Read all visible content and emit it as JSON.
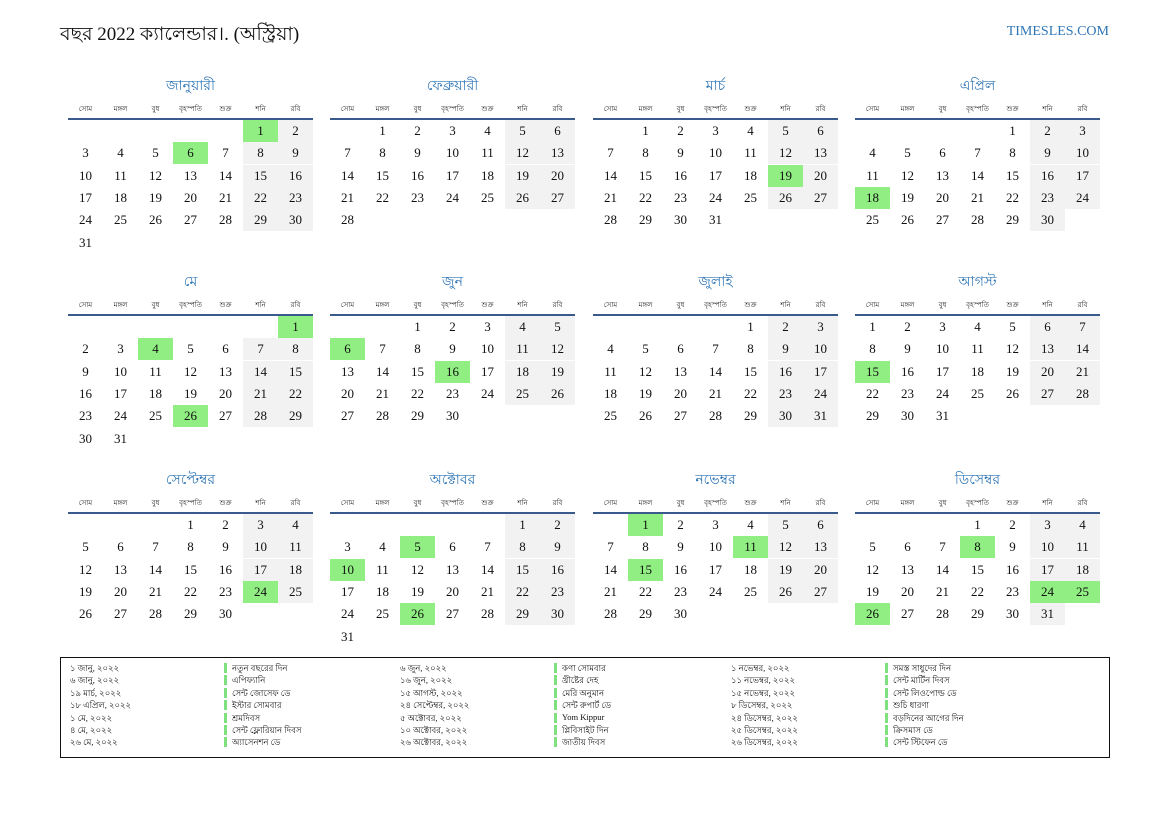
{
  "header": {
    "title": "বছর 2022 ক্যালেন্ডার।. (অস্ট্রিয়া)",
    "site": "TIMESLES.COM"
  },
  "weekdays": [
    "সোম",
    "মঙ্গল",
    "বুধ",
    "বৃহস্পতি",
    "শুক্র",
    "শনি",
    "রবি"
  ],
  "months": [
    {
      "name": "জানুয়ারী",
      "holidays": [
        1,
        6
      ],
      "weeks": [
        [
          null,
          null,
          null,
          null,
          null,
          1,
          2
        ],
        [
          3,
          4,
          5,
          6,
          7,
          8,
          9
        ],
        [
          10,
          11,
          12,
          13,
          14,
          15,
          16
        ],
        [
          17,
          18,
          19,
          20,
          21,
          22,
          23
        ],
        [
          24,
          25,
          26,
          27,
          28,
          29,
          30
        ],
        [
          31
        ]
      ]
    },
    {
      "name": "ফেব্রুয়ারী",
      "holidays": [],
      "weeks": [
        [
          null,
          1,
          2,
          3,
          4,
          5,
          6
        ],
        [
          7,
          8,
          9,
          10,
          11,
          12,
          13
        ],
        [
          14,
          15,
          16,
          17,
          18,
          19,
          20
        ],
        [
          21,
          22,
          23,
          24,
          25,
          26,
          27
        ],
        [
          28
        ]
      ]
    },
    {
      "name": "মার্চ",
      "holidays": [
        19
      ],
      "weeks": [
        [
          null,
          1,
          2,
          3,
          4,
          5,
          6
        ],
        [
          7,
          8,
          9,
          10,
          11,
          12,
          13
        ],
        [
          14,
          15,
          16,
          17,
          18,
          19,
          20
        ],
        [
          21,
          22,
          23,
          24,
          25,
          26,
          27
        ],
        [
          28,
          29,
          30,
          31
        ]
      ]
    },
    {
      "name": "এপ্রিল",
      "holidays": [
        18
      ],
      "weeks": [
        [
          null,
          null,
          null,
          null,
          1,
          2,
          3
        ],
        [
          4,
          5,
          6,
          7,
          8,
          9,
          10
        ],
        [
          11,
          12,
          13,
          14,
          15,
          16,
          17
        ],
        [
          18,
          19,
          20,
          21,
          22,
          23,
          24
        ],
        [
          25,
          26,
          27,
          28,
          29,
          30
        ]
      ]
    },
    {
      "name": "মে",
      "holidays": [
        1,
        4,
        26
      ],
      "weeks": [
        [
          null,
          null,
          null,
          null,
          null,
          null,
          1
        ],
        [
          2,
          3,
          4,
          5,
          6,
          7,
          8
        ],
        [
          9,
          10,
          11,
          12,
          13,
          14,
          15
        ],
        [
          16,
          17,
          18,
          19,
          20,
          21,
          22
        ],
        [
          23,
          24,
          25,
          26,
          27,
          28,
          29
        ],
        [
          30,
          31
        ]
      ]
    },
    {
      "name": "জুন",
      "holidays": [
        6,
        16
      ],
      "weeks": [
        [
          null,
          null,
          1,
          2,
          3,
          4,
          5
        ],
        [
          6,
          7,
          8,
          9,
          10,
          11,
          12
        ],
        [
          13,
          14,
          15,
          16,
          17,
          18,
          19
        ],
        [
          20,
          21,
          22,
          23,
          24,
          25,
          26
        ],
        [
          27,
          28,
          29,
          30
        ]
      ]
    },
    {
      "name": "জুলাই",
      "holidays": [],
      "weeks": [
        [
          null,
          null,
          null,
          null,
          1,
          2,
          3
        ],
        [
          4,
          5,
          6,
          7,
          8,
          9,
          10
        ],
        [
          11,
          12,
          13,
          14,
          15,
          16,
          17
        ],
        [
          18,
          19,
          20,
          21,
          22,
          23,
          24
        ],
        [
          25,
          26,
          27,
          28,
          29,
          30,
          31
        ]
      ]
    },
    {
      "name": "আগস্ট",
      "holidays": [
        15
      ],
      "weeks": [
        [
          1,
          2,
          3,
          4,
          5,
          6,
          7
        ],
        [
          8,
          9,
          10,
          11,
          12,
          13,
          14
        ],
        [
          15,
          16,
          17,
          18,
          19,
          20,
          21
        ],
        [
          22,
          23,
          24,
          25,
          26,
          27,
          28
        ],
        [
          29,
          30,
          31
        ]
      ]
    },
    {
      "name": "সেপ্টেম্বর",
      "holidays": [
        24
      ],
      "weeks": [
        [
          null,
          null,
          null,
          1,
          2,
          3,
          4
        ],
        [
          5,
          6,
          7,
          8,
          9,
          10,
          11
        ],
        [
          12,
          13,
          14,
          15,
          16,
          17,
          18
        ],
        [
          19,
          20,
          21,
          22,
          23,
          24,
          25
        ],
        [
          26,
          27,
          28,
          29,
          30
        ]
      ]
    },
    {
      "name": "অক্টোবর",
      "holidays": [
        5,
        10,
        26
      ],
      "weeks": [
        [
          null,
          null,
          null,
          null,
          null,
          1,
          2
        ],
        [
          3,
          4,
          5,
          6,
          7,
          8,
          9
        ],
        [
          10,
          11,
          12,
          13,
          14,
          15,
          16
        ],
        [
          17,
          18,
          19,
          20,
          21,
          22,
          23
        ],
        [
          24,
          25,
          26,
          27,
          28,
          29,
          30
        ],
        [
          31
        ]
      ]
    },
    {
      "name": "নভেম্বর",
      "holidays": [
        1,
        11,
        15
      ],
      "weeks": [
        [
          null,
          1,
          2,
          3,
          4,
          5,
          6
        ],
        [
          7,
          8,
          9,
          10,
          11,
          12,
          13
        ],
        [
          14,
          15,
          16,
          17,
          18,
          19,
          20
        ],
        [
          21,
          22,
          23,
          24,
          25,
          26,
          27
        ],
        [
          28,
          29,
          30
        ]
      ]
    },
    {
      "name": "ডিসেম্বর",
      "holidays": [
        8,
        24,
        25,
        26
      ],
      "weeks": [
        [
          null,
          null,
          null,
          1,
          2,
          3,
          4
        ],
        [
          5,
          6,
          7,
          8,
          9,
          10,
          11
        ],
        [
          12,
          13,
          14,
          15,
          16,
          17,
          18
        ],
        [
          19,
          20,
          21,
          22,
          23,
          24,
          25
        ],
        [
          26,
          27,
          28,
          29,
          30,
          31
        ]
      ]
    }
  ],
  "holiday_list": [
    [
      [
        "১ জানু, ২০২২",
        "নতুন বছরের দিন"
      ],
      [
        "৬ জানু, ২০২২",
        "এপিফ্যানি"
      ],
      [
        "১৯ মার্চ, ২০২২",
        "সেন্ট জোসেফ ডে"
      ],
      [
        "১৮ এপ্রিল, ২০২২",
        "ইস্টার সোমবার"
      ],
      [
        "১ মে, ২০২২",
        "শ্রমদিবস"
      ],
      [
        "৪ মে, ২০২২",
        "সেন্ট ফ্লোরিয়ান দিবস"
      ],
      [
        "২৬ মে, ২০২২",
        "অ্যাসেনশন ডে"
      ]
    ],
    [
      [
        "৬ জুন, ২০২২",
        "কণা সোমবার"
      ],
      [
        "১৬ জুন, ২০২২",
        "খ্রীষ্টের দেহ"
      ],
      [
        "১৫ আগস্ট, ২০২২",
        "মেরি অনুমান"
      ],
      [
        "২৪ সেপ্টেম্বর, ২০২২",
        "সেন্ট রুপার্ট ডে"
      ],
      [
        "৫ অক্টোবর, ২০২২",
        "Yom Kippur"
      ],
      [
        "১০ অক্টোবর, ২০২২",
        "প্লিবিসাইট দিন"
      ],
      [
        "২৬ অক্টোবর, ২০২২",
        "জাতীয় দিবস"
      ]
    ],
    [
      [
        "১ নভেম্বর, ২০২২",
        "সমস্ত সাধুদের দিন"
      ],
      [
        "১১ নভেম্বর, ২০২২",
        "সেন্ট মার্টিন দিবস"
      ],
      [
        "১৫ নভেম্বর, ২০২২",
        "সেন্ট লিওপোল্ড ডে"
      ],
      [
        "৮ ডিসেম্বর, ২০২২",
        "শুচি ধারণা"
      ],
      [
        "২৪ ডিসেম্বর, ২০২২",
        "বড়দিনের আগের দিন"
      ],
      [
        "২৫ ডিসেম্বর, ২০২২",
        "ক্রিসমাস ডে"
      ],
      [
        "২৬ ডিসেম্বর, ২০২২",
        "সেন্ট স্টিফেন ডে"
      ]
    ]
  ]
}
